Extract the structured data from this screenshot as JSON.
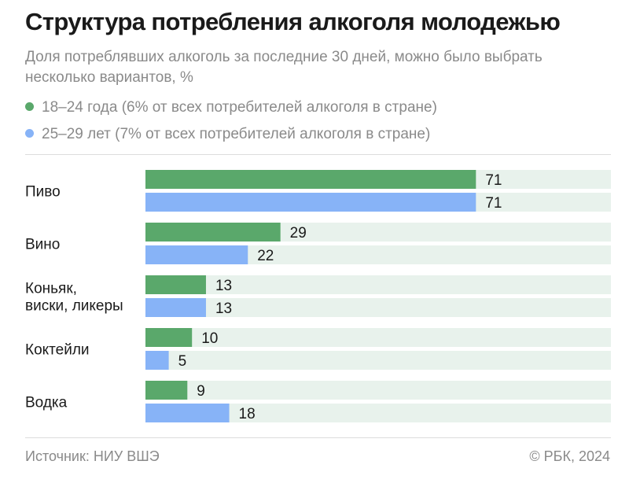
{
  "header": {
    "title": "Структура потребления алкоголя молодежью",
    "subtitle": "Доля потреблявших алкоголь за последние 30 дней, можно было выбрать несколько вариантов, %"
  },
  "legend": [
    {
      "label": "18–24 года (6% от всех потребителей алкоголя в стране)",
      "color": "#5aa86b"
    },
    {
      "label": "25–29 лет (7% от всех потребителей алкоголя в стране)",
      "color": "#87b3f7"
    }
  ],
  "chart_data": {
    "type": "bar",
    "orientation": "horizontal",
    "categories": [
      [
        "Пиво"
      ],
      [
        "Вино"
      ],
      [
        "Коньяк,",
        "виски, ликеры"
      ],
      [
        "Коктейли"
      ],
      [
        "Водка"
      ]
    ],
    "series": [
      {
        "name": "18–24 года (6% от всех потребителей алкоголя в стране)",
        "values": [
          71,
          29,
          13,
          10,
          9
        ],
        "color": "#5aa86b"
      },
      {
        "name": "25–29 лет (7% от всех потребителей алкоголя в стране)",
        "values": [
          71,
          22,
          13,
          5,
          18
        ],
        "color": "#87b3f7"
      }
    ],
    "xlim": [
      0,
      100
    ],
    "track_color": "#e8f2ec",
    "grid": false,
    "legend_position": "top-left"
  },
  "footer": {
    "source": "Источник: НИУ ВШЭ",
    "copyright": "© РБК, 2024"
  }
}
